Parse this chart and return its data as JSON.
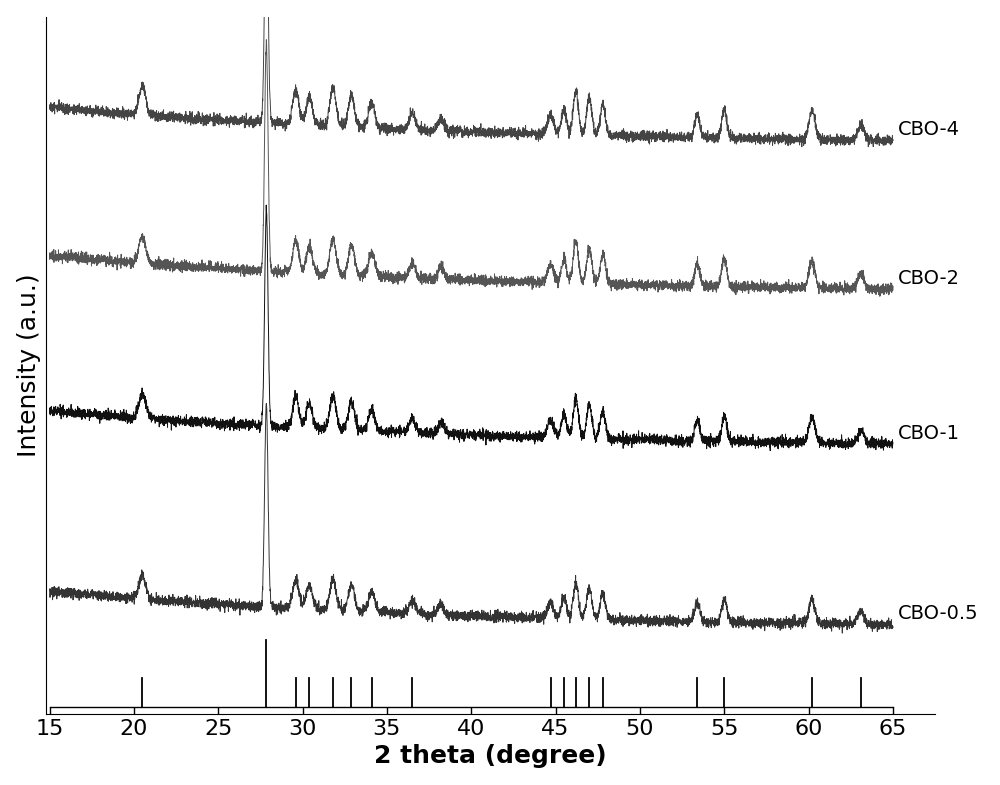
{
  "xlabel": "2 theta (degree)",
  "ylabel": "Intensity (a.u.)",
  "xlim": [
    15,
    65
  ],
  "x_ticks": [
    15,
    20,
    25,
    30,
    35,
    40,
    45,
    50,
    55,
    60,
    65
  ],
  "series_labels": [
    "CBO-0.5",
    "CBO-1",
    "CBO-2",
    "CBO-4"
  ],
  "series_colors_dark": [
    "#333333",
    "#111111",
    "#555555",
    "#444444"
  ],
  "series_offsets": [
    0.13,
    0.41,
    0.65,
    0.88
  ],
  "reference_peaks": [
    20.5,
    27.85,
    29.6,
    30.4,
    31.8,
    32.9,
    34.1,
    36.5,
    44.7,
    45.5,
    46.2,
    47.0,
    47.8,
    53.4,
    55.0,
    60.2,
    63.1
  ],
  "ref_peak_tall": [
    27.85
  ],
  "background_color": "#ffffff",
  "label_fontsize": 18,
  "tick_fontsize": 16,
  "annotation_fontsize": 14,
  "line_width": 0.7,
  "noise_amplitude": 0.004,
  "figure_width": 10.0,
  "figure_height": 7.85,
  "peaks": [
    20.5,
    27.85,
    29.6,
    30.4,
    31.8,
    32.9,
    34.1,
    36.5,
    38.2,
    44.7,
    45.5,
    46.2,
    47.0,
    47.8,
    53.4,
    55.0,
    60.2,
    63.1
  ],
  "widths": [
    0.2,
    0.1,
    0.18,
    0.18,
    0.18,
    0.18,
    0.18,
    0.18,
    0.18,
    0.18,
    0.15,
    0.15,
    0.15,
    0.15,
    0.15,
    0.15,
    0.18,
    0.18
  ],
  "heights_base": [
    0.045,
    0.38,
    0.055,
    0.045,
    0.06,
    0.05,
    0.04,
    0.025,
    0.02,
    0.03,
    0.04,
    0.07,
    0.06,
    0.05,
    0.035,
    0.045,
    0.045,
    0.025
  ],
  "bg_amplitude": 0.06,
  "bg_decay": 0.04,
  "scale_factors": [
    0.82,
    0.88,
    0.93,
    0.98
  ]
}
